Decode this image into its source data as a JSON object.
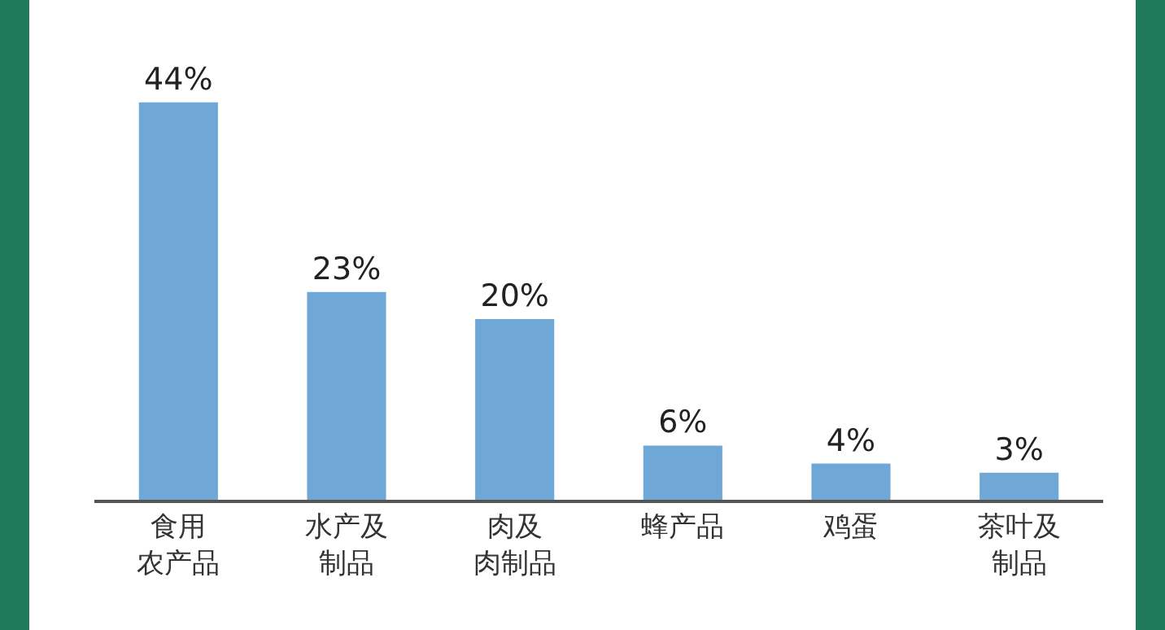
{
  "chart_data": {
    "type": "bar",
    "categories": [
      "食用农产品",
      "水产及制品",
      "肉及肉制品",
      "蜂产品",
      "鸡蛋",
      "茶叶及制品"
    ],
    "values": [
      44,
      23,
      20,
      6,
      4,
      3
    ],
    "value_labels": [
      "44%",
      "23%",
      "20%",
      "6%",
      "4%",
      "3%"
    ],
    "color": "#6fa8d6",
    "grid": false
  }
}
